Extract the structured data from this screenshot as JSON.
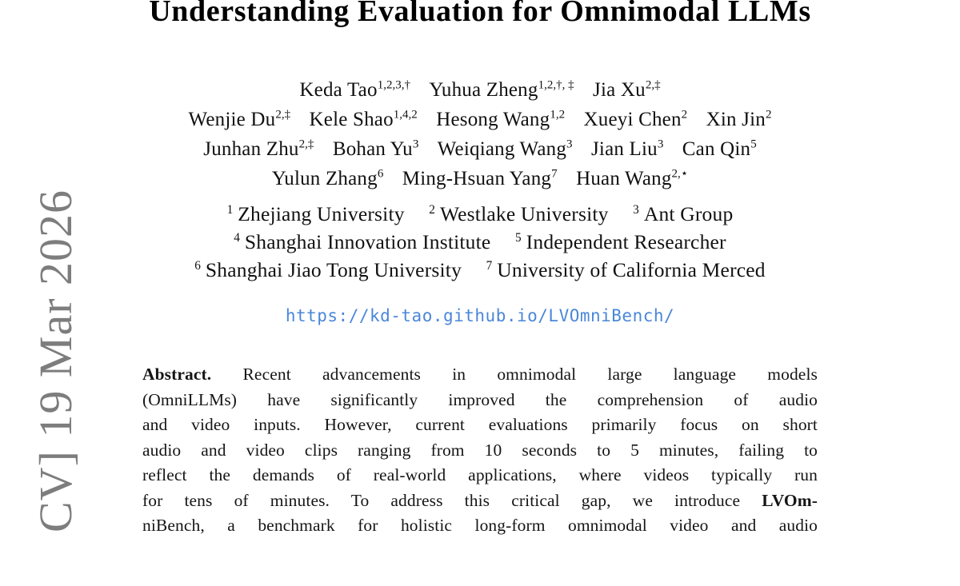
{
  "banner": {
    "text": "CV]  19 Mar 2026",
    "color": "#7d7d7d"
  },
  "title": "Understanding Evaluation for Omnimodal LLMs",
  "author_lines": [
    [
      {
        "name": "Keda Tao",
        "sup": "1,2,3,†"
      },
      {
        "name": "Yuhua Zheng",
        "sup": "1,2,†, ‡"
      },
      {
        "name": "Jia Xu",
        "sup": "2,‡"
      }
    ],
    [
      {
        "name": "Wenjie Du",
        "sup": "2,‡"
      },
      {
        "name": "Kele Shao",
        "sup": "1,4,2"
      },
      {
        "name": "Hesong Wang",
        "sup": "1,2"
      },
      {
        "name": "Xueyi Chen",
        "sup": "2"
      },
      {
        "name": "Xin Jin",
        "sup": "2"
      }
    ],
    [
      {
        "name": "Junhan Zhu",
        "sup": "2,‡"
      },
      {
        "name": "Bohan Yu",
        "sup": "3"
      },
      {
        "name": "Weiqiang Wang",
        "sup": "3"
      },
      {
        "name": "Jian Liu",
        "sup": "3"
      },
      {
        "name": "Can Qin",
        "sup": "5"
      }
    ],
    [
      {
        "name": "Yulun Zhang",
        "sup": "6"
      },
      {
        "name": "Ming-Hsuan Yang",
        "sup": "7"
      },
      {
        "name": "Huan Wang",
        "sup": "2,⋆"
      }
    ]
  ],
  "affiliation_lines": [
    [
      {
        "sup": "1",
        "text": "Zhejiang University"
      },
      {
        "sup": "2",
        "text": "Westlake University"
      },
      {
        "sup": "3",
        "text": "Ant Group"
      }
    ],
    [
      {
        "sup": "4",
        "text": "Shanghai Innovation Institute"
      },
      {
        "sup": "5",
        "text": "Independent Researcher"
      }
    ],
    [
      {
        "sup": "6",
        "text": "Shanghai Jiao Tong University"
      },
      {
        "sup": "7",
        "text": "University of California Merced"
      }
    ]
  ],
  "link": {
    "url": "https://kd-tao.github.io/LVOmniBench/",
    "color": "#4b87d9"
  },
  "abstract": {
    "label": "Abstract.",
    "lines": [
      " Recent advancements in omnimodal large language models",
      "(OmniLLMs) have significantly improved the comprehension of audio",
      "and video inputs. However, current evaluations primarily focus on short",
      "audio and video clips ranging from 10 seconds to 5 minutes, failing to",
      "reflect the demands of real-world applications, where videos typically run",
      "for tens of minutes. To address this critical gap, we introduce "
    ],
    "bold_end": "LVOm-",
    "clipped_line_fragment": "niBench, a benchmark for holistic long-form omnimodal video and audio"
  }
}
